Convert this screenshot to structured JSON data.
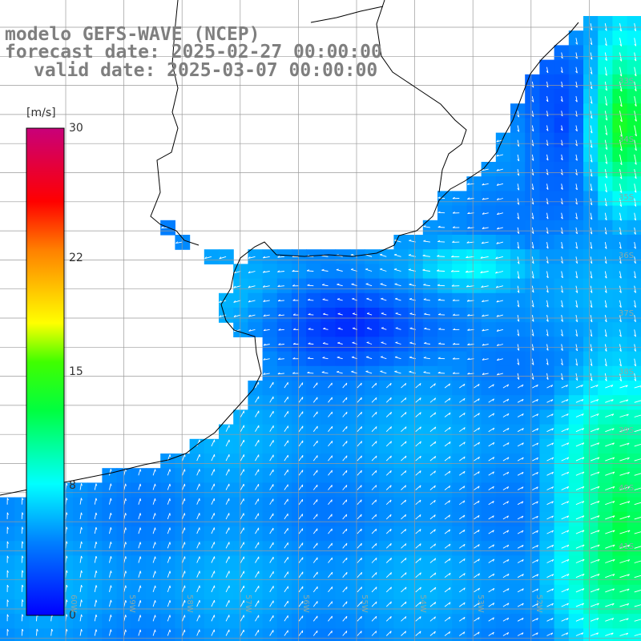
{
  "header": {
    "model_line": "modelo GEFS-WAVE (NCEP)",
    "forecast_line": "forecast date: 2025-02-27 00:00:00",
    "valid_line": "valid date: 2025-03-07 00:00:00"
  },
  "colorbar": {
    "unit": "[m/s]",
    "ticks": [
      {
        "label": "30",
        "value": 30
      },
      {
        "label": "22",
        "value": 22
      },
      {
        "label": "15",
        "value": 15
      },
      {
        "label": "8",
        "value": 8
      },
      {
        "label": "0",
        "value": 0
      }
    ],
    "min": 0,
    "max": 30
  },
  "lat_labels": [
    "33S",
    "34S",
    "35S",
    "36S",
    "37S",
    "38S",
    "39S",
    "40S",
    "41S"
  ],
  "lon_labels": [
    "60W",
    "59W",
    "58W",
    "57W",
    "56W",
    "55W",
    "54W",
    "53W",
    "52W"
  ],
  "colors": {
    "land": "#ffffff",
    "coast": "#000000",
    "grid": "#9a9a9a",
    "vectors": "#ffffff",
    "title": "#7f7f7f"
  }
}
